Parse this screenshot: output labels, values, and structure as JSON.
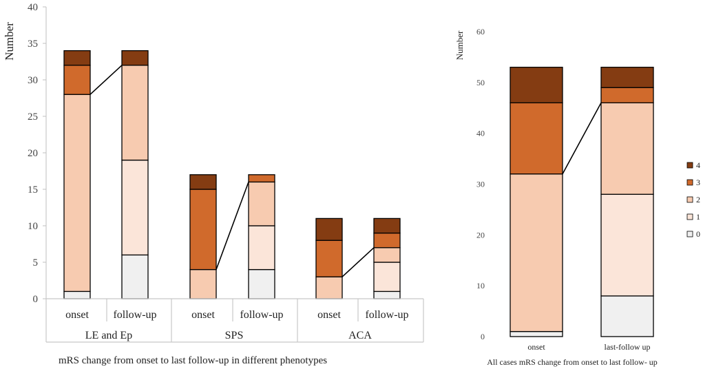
{
  "colors": {
    "0": "#f0f0f0",
    "1": "#fbe5d9",
    "2": "#f7cbb0",
    "3": "#d06a2c",
    "4": "#843c12"
  },
  "chart_data": [
    {
      "type": "bar",
      "stacked": true,
      "title": "",
      "ylabel": "Number",
      "xlabel": "mRS change from onset to last follow-up in different phenotypes",
      "ylim": [
        0,
        40
      ],
      "yticks": [
        0,
        5,
        10,
        15,
        20,
        25,
        30,
        35,
        40
      ],
      "groups": [
        "LE and Ep",
        "SPS",
        "ACA"
      ],
      "bar_labels": [
        "onset",
        "follow-up",
        "onset",
        "follow-up",
        "onset",
        "follow-up"
      ],
      "series": [
        {
          "name": "0",
          "values": [
            1,
            6,
            0,
            4,
            0,
            1
          ]
        },
        {
          "name": "1",
          "values": [
            0,
            13,
            0,
            6,
            0,
            4
          ]
        },
        {
          "name": "2",
          "values": [
            27,
            13,
            4,
            6,
            3,
            2
          ]
        },
        {
          "name": "3",
          "values": [
            4,
            0,
            11,
            1,
            5,
            2
          ]
        },
        {
          "name": "4",
          "values": [
            2,
            2,
            2,
            0,
            3,
            2
          ]
        }
      ]
    },
    {
      "type": "bar",
      "stacked": true,
      "title": "",
      "ylabel": "Number",
      "xlabel": "All cases mRS change from onset to last follow- up",
      "ylim": [
        0,
        60
      ],
      "yticks": [
        0,
        10,
        20,
        30,
        40,
        50,
        60
      ],
      "bar_labels": [
        "onset",
        "last-follow up"
      ],
      "series": [
        {
          "name": "0",
          "values": [
            1,
            8
          ]
        },
        {
          "name": "1",
          "values": [
            0,
            20
          ]
        },
        {
          "name": "2",
          "values": [
            31,
            18
          ]
        },
        {
          "name": "3",
          "values": [
            14,
            3
          ]
        },
        {
          "name": "4",
          "values": [
            7,
            4
          ]
        }
      ],
      "legend": [
        "4",
        "3",
        "2",
        "1",
        "0"
      ],
      "legend_position": "right"
    }
  ]
}
